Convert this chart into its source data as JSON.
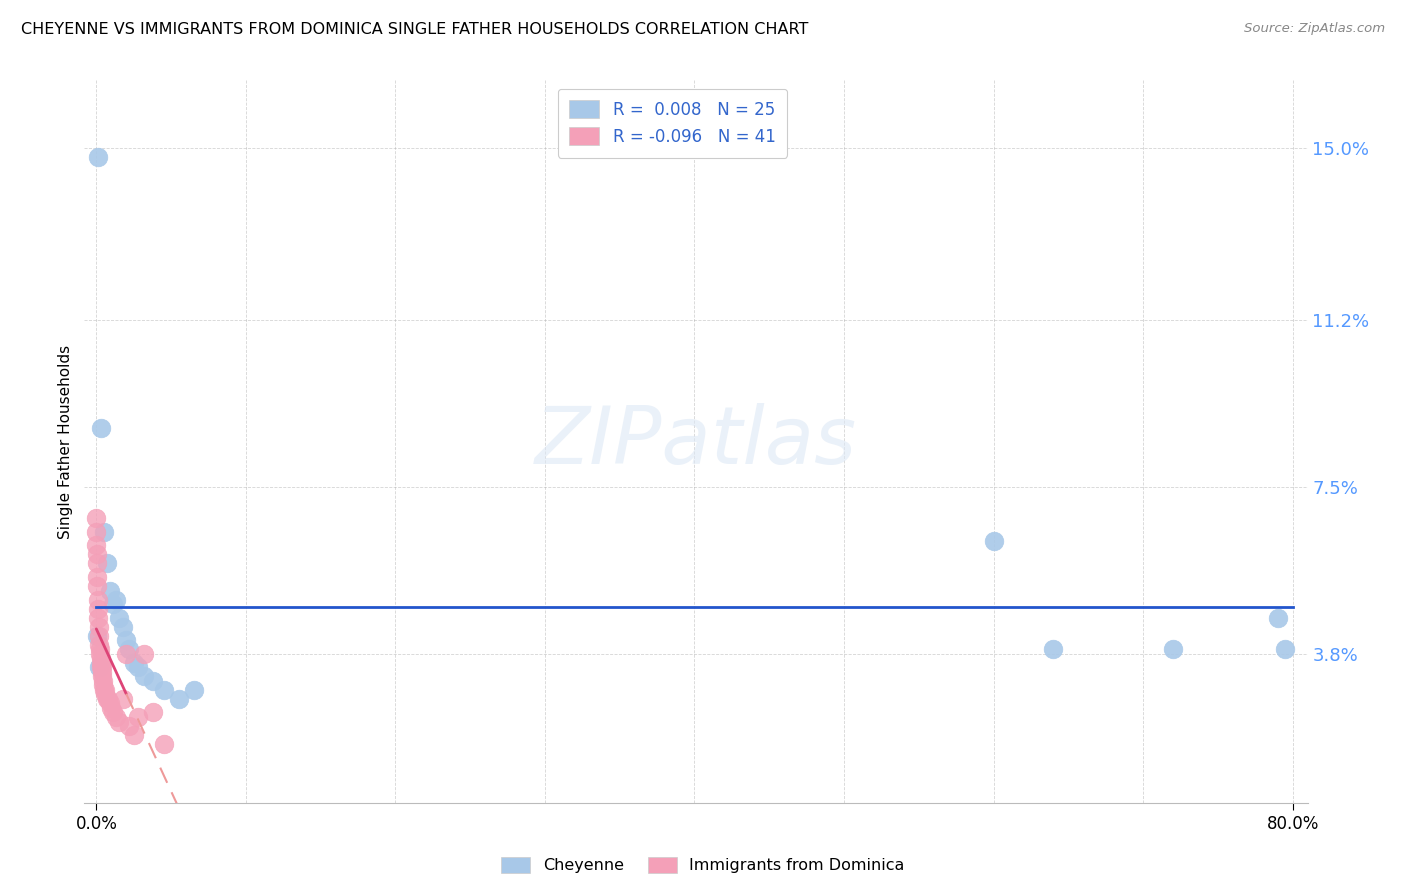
{
  "title": "CHEYENNE VS IMMIGRANTS FROM DOMINICA SINGLE FATHER HOUSEHOLDS CORRELATION CHART",
  "source": "Source: ZipAtlas.com",
  "ylabel": "Single Father Households",
  "ytick_labels": [
    "3.8%",
    "7.5%",
    "11.2%",
    "15.0%"
  ],
  "ytick_values": [
    3.8,
    7.5,
    11.2,
    15.0
  ],
  "legend1_r": "0.008",
  "legend1_n": "25",
  "legend2_r": "-0.096",
  "legend2_n": "41",
  "cheyenne_color": "#a8c8e8",
  "dominica_color": "#f4a0b8",
  "cheyenne_line_color": "#2255cc",
  "dominica_line_color": "#dd4477",
  "dominica_line_dashed_color": "#ee9999",
  "background_color": "#ffffff",
  "watermark": "ZIPatlas",
  "xlim_max": 80.0,
  "ylim_min": 0.5,
  "ylim_max": 16.5,
  "cheyenne_x": [
    0.08,
    0.3,
    0.5,
    0.7,
    0.9,
    1.1,
    1.3,
    1.5,
    1.8,
    2.0,
    2.2,
    2.5,
    2.8,
    3.2,
    3.8,
    4.5,
    5.5,
    6.5,
    60.0,
    64.0,
    72.0,
    79.0,
    79.5,
    0.05,
    0.15
  ],
  "cheyenne_y": [
    14.8,
    8.8,
    6.5,
    5.8,
    5.2,
    4.9,
    5.0,
    4.6,
    4.4,
    4.1,
    3.9,
    3.6,
    3.5,
    3.3,
    3.2,
    3.0,
    2.8,
    3.0,
    6.3,
    3.9,
    3.9,
    4.6,
    3.9,
    4.2,
    3.5
  ],
  "dominica_x": [
    0.0,
    0.0,
    0.0,
    0.02,
    0.02,
    0.05,
    0.07,
    0.08,
    0.1,
    0.12,
    0.15,
    0.18,
    0.2,
    0.22,
    0.25,
    0.28,
    0.3,
    0.32,
    0.35,
    0.38,
    0.4,
    0.42,
    0.45,
    0.5,
    0.55,
    0.6,
    0.7,
    0.8,
    0.9,
    1.0,
    1.1,
    1.3,
    1.5,
    1.8,
    2.0,
    2.2,
    2.5,
    2.8,
    3.2,
    3.8,
    4.5
  ],
  "dominica_y": [
    6.8,
    6.5,
    6.2,
    6.0,
    5.8,
    5.5,
    5.3,
    5.0,
    4.8,
    4.6,
    4.4,
    4.2,
    4.0,
    3.9,
    3.8,
    3.7,
    3.6,
    3.5,
    3.5,
    3.4,
    3.3,
    3.2,
    3.1,
    3.0,
    3.0,
    2.9,
    2.8,
    2.8,
    2.7,
    2.6,
    2.5,
    2.4,
    2.3,
    2.8,
    3.8,
    2.2,
    2.0,
    2.4,
    3.8,
    2.5,
    1.8
  ]
}
